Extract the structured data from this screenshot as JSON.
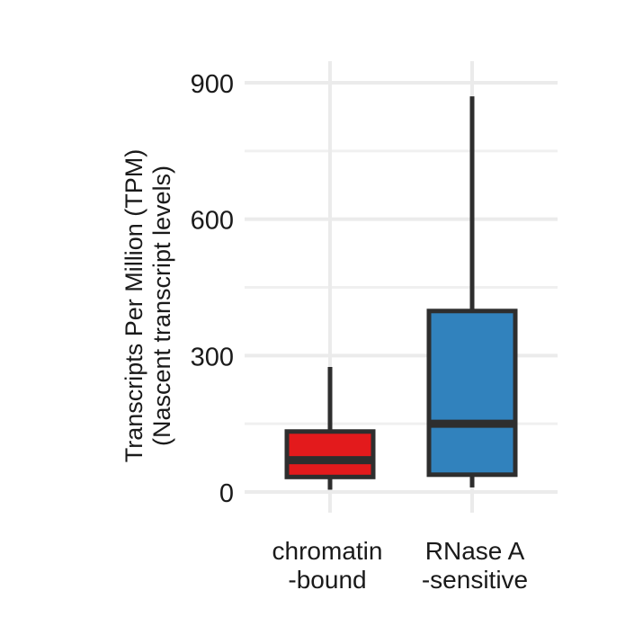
{
  "chart_data": {
    "type": "box",
    "ylabel": "Transcripts Per Million (TPM)",
    "ylabel2": "(Nascent transcript levels)",
    "ylim": [
      -25,
      940
    ],
    "yticks": [
      0,
      300,
      600,
      900
    ],
    "grid": true,
    "categories": [
      {
        "label_line1": "chromatin",
        "label_line2": "-bound",
        "color": "#e31a1c",
        "min": 5,
        "q1": 33,
        "median": 70,
        "q3": 133,
        "max": 275
      },
      {
        "label_line1": "RNase A",
        "label_line2": "-sensitive",
        "color": "#3182bd",
        "min": 10,
        "q1": 38,
        "median": 150,
        "q3": 398,
        "max": 870
      }
    ]
  }
}
